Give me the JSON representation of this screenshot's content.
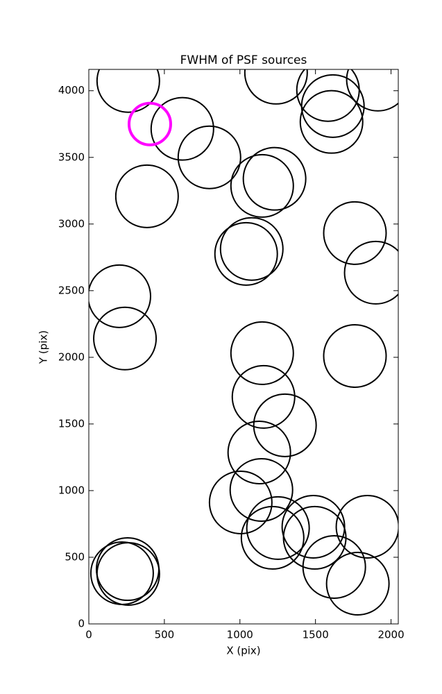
{
  "chart_data": {
    "type": "scatter",
    "title": "FWHM of PSF sources",
    "xlabel": "X (pix)",
    "ylabel": "Y (pix)",
    "xlim": [
      0,
      2048
    ],
    "ylim": [
      0,
      4160
    ],
    "xticks": [
      0,
      500,
      1000,
      1500,
      2000
    ],
    "yticks": [
      0,
      500,
      1000,
      1500,
      2000,
      2500,
      3000,
      3500,
      4000
    ],
    "grid": false,
    "marker": "circle",
    "series": [
      {
        "color": "#000000",
        "x": [
          261,
          619,
          798,
          385,
          1239,
          1583,
          1615,
          1606,
          1913,
          1229,
          1147,
          1041,
          1078,
          1761,
          1899,
          202,
          239,
          1147,
          1761,
          1156,
          1298,
          1128,
          1142,
          1005,
          1252,
          1216,
          1486,
          1844,
          1495,
          1624,
          1780,
          257,
          261,
          220
        ],
        "values": [
          4073,
          3714,
          3500,
          3208,
          4135,
          4005,
          3885,
          3766,
          4083,
          3339,
          3286,
          2776,
          2813,
          2932,
          2635,
          2458,
          2141,
          2031,
          2010,
          1703,
          1490,
          1286,
          1005,
          911,
          719,
          646,
          729,
          729,
          646,
          427,
          302,
          411,
          375,
          380
        ]
      },
      {
        "color": "#ff00ff",
        "x": [
          404
        ],
        "values": [
          3750
        ]
      }
    ]
  }
}
